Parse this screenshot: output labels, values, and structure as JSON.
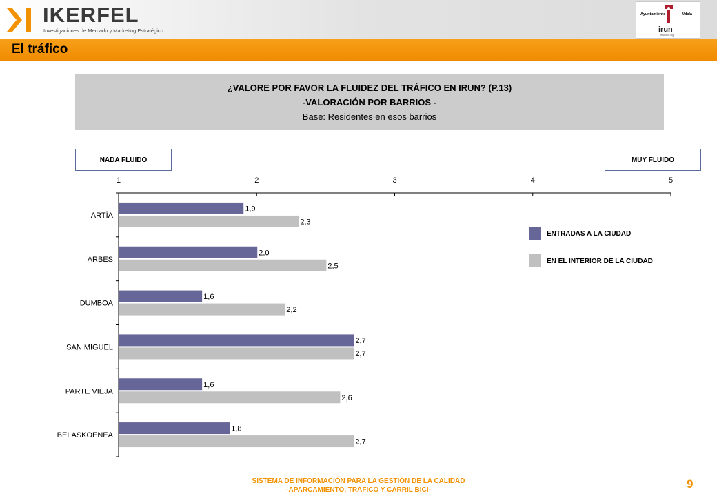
{
  "header": {
    "brand": "IKERFEL",
    "brand_subtitle": "Investigaciones de Mercado y Marketing Estratégico",
    "city_logo": {
      "left_text": "Ayuntamiento",
      "right_text": "Udala",
      "name": "irun",
      "url": "www.irun.org"
    }
  },
  "section": {
    "title": "El tráfico"
  },
  "question": {
    "line1": "¿VALORE POR FAVOR LA FLUIDEZ DEL TRÁFICO EN IRUN? (P.13)",
    "line2": "-VALORACIÓN POR BARRIOS -",
    "line3": "Base: Residentes en esos barrios"
  },
  "scale_labels": {
    "low": "NADA FLUIDO",
    "high": "MUY FLUIDO"
  },
  "chart_data": {
    "type": "bar",
    "orientation": "horizontal",
    "categories": [
      "ARTÍA",
      "ARBES",
      "DUMBOA",
      "SAN MIGUEL",
      "PARTE VIEJA",
      "BELASKOENEA"
    ],
    "series": [
      {
        "name": "ENTRADAS A LA CIUDAD",
        "values": [
          1.9,
          2.0,
          1.6,
          2.7,
          1.6,
          1.8
        ],
        "labels": [
          "1,9",
          "2,0",
          "1,6",
          "2,7",
          "1,6",
          "1,8"
        ],
        "color": "#666699"
      },
      {
        "name": "EN EL INTERIOR DE LA CIUDAD",
        "values": [
          2.3,
          2.5,
          2.2,
          2.7,
          2.6,
          2.7
        ],
        "labels": [
          "2,3",
          "2,5",
          "2,2",
          "2,7",
          "2,6",
          "2,7"
        ],
        "color": "#c0c0c0"
      }
    ],
    "xlim": [
      1,
      5
    ],
    "xticks": [
      "1",
      "2",
      "3",
      "4",
      "5"
    ],
    "legend_position": "right",
    "grid": false
  },
  "footer": {
    "line1": "SISTEMA DE INFORMACIÓN PARA LA GESTIÓN DE LA CALIDAD",
    "line2": "-APARCAMIENTO, TRÁFICO Y CARRIL BICI-",
    "page_number": "9"
  }
}
